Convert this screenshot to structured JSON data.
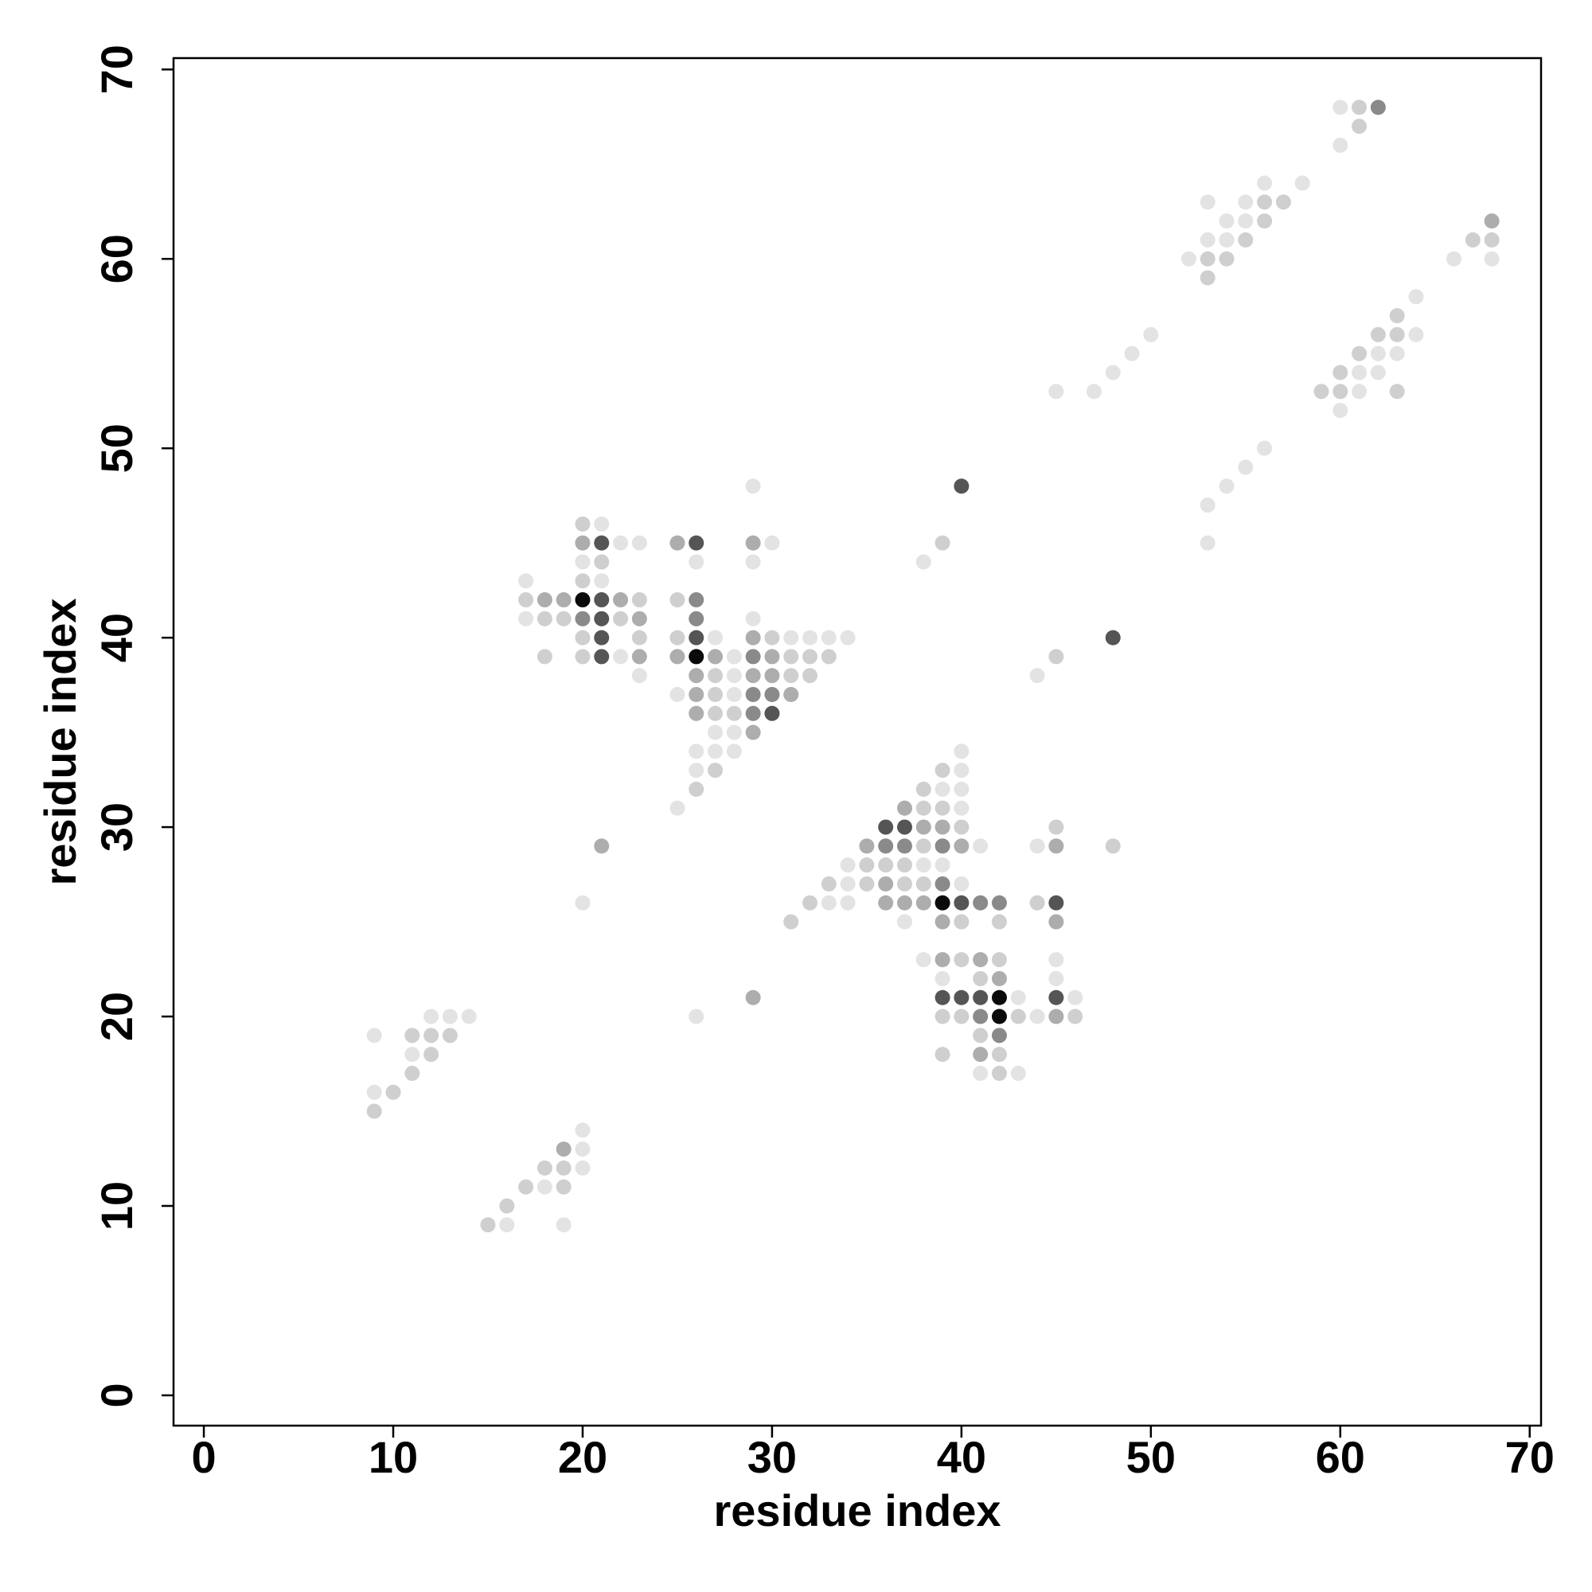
{
  "chart_data": {
    "type": "scatter",
    "xlabel": "residue index",
    "ylabel": "residue index",
    "xlim": [
      -1.6,
      70.6
    ],
    "ylim": [
      -1.6,
      70.6
    ],
    "xticks": [
      0,
      10,
      20,
      30,
      40,
      50,
      60,
      70
    ],
    "yticks": [
      0,
      10,
      20,
      30,
      40,
      50,
      60,
      70
    ],
    "series": [
      {
        "color": "#e3e3e3",
        "x": [
          60,
          60,
          56,
          58,
          53,
          55,
          54,
          55,
          53,
          54,
          52,
          66,
          68,
          64,
          50,
          64,
          49,
          62,
          63,
          48,
          61,
          62,
          45,
          47,
          61,
          60,
          56,
          55,
          29,
          54,
          53,
          21,
          22,
          23,
          30,
          53,
          20,
          26,
          29,
          38,
          17,
          21,
          17,
          29,
          27,
          31,
          32,
          33,
          34,
          22,
          28,
          23,
          28,
          44,
          25,
          28,
          27,
          28,
          26,
          27,
          28,
          40,
          26,
          40,
          39,
          40,
          25,
          40,
          41,
          44,
          34,
          38,
          39,
          34,
          40,
          20,
          33,
          34,
          37,
          38,
          45,
          39,
          45,
          43,
          46,
          26,
          44,
          12,
          13,
          14,
          9,
          11,
          41,
          43,
          9,
          20,
          20,
          20,
          18,
          16,
          19
        ],
        "y": [
          68,
          66,
          64,
          64,
          63,
          63,
          62,
          62,
          61,
          61,
          60,
          60,
          60,
          58,
          56,
          56,
          55,
          55,
          55,
          54,
          54,
          54,
          53,
          53,
          53,
          52,
          50,
          49,
          48,
          48,
          47,
          46,
          45,
          45,
          45,
          45,
          44,
          44,
          44,
          44,
          43,
          43,
          41,
          41,
          40,
          40,
          40,
          40,
          40,
          39,
          39,
          38,
          38,
          38,
          37,
          37,
          35,
          35,
          34,
          34,
          34,
          34,
          33,
          33,
          32,
          32,
          31,
          31,
          29,
          29,
          28,
          28,
          28,
          27,
          27,
          26,
          26,
          26,
          25,
          23,
          23,
          22,
          22,
          21,
          21,
          20,
          20,
          20,
          20,
          20,
          19,
          18,
          17,
          17,
          16,
          14,
          13,
          12,
          11,
          9,
          9
        ]
      },
      {
        "color": "#cfcfcf",
        "x": [
          61,
          61,
          56,
          57,
          56,
          55,
          67,
          68,
          53,
          54,
          53,
          63,
          62,
          63,
          61,
          60,
          59,
          60,
          63,
          20,
          39,
          21,
          20,
          17,
          23,
          25,
          18,
          19,
          22,
          20,
          23,
          25,
          30,
          18,
          20,
          31,
          32,
          33,
          45,
          27,
          31,
          32,
          27,
          27,
          28,
          27,
          39,
          26,
          38,
          38,
          39,
          40,
          45,
          38,
          48,
          35,
          36,
          37,
          33,
          35,
          37,
          38,
          32,
          44,
          31,
          40,
          42,
          40,
          42,
          41,
          39,
          40,
          43,
          46,
          11,
          12,
          13,
          41,
          12,
          39,
          42,
          11,
          42,
          10,
          9,
          18,
          19,
          17,
          19,
          16,
          15
        ],
        "y": [
          68,
          67,
          63,
          63,
          62,
          61,
          61,
          61,
          60,
          60,
          59,
          57,
          56,
          56,
          55,
          54,
          53,
          53,
          53,
          46,
          45,
          44,
          43,
          42,
          42,
          42,
          41,
          41,
          41,
          40,
          40,
          40,
          40,
          39,
          39,
          39,
          39,
          39,
          39,
          38,
          38,
          38,
          37,
          36,
          36,
          33,
          33,
          32,
          32,
          31,
          31,
          30,
          30,
          29,
          29,
          28,
          28,
          28,
          27,
          27,
          27,
          27,
          26,
          26,
          25,
          25,
          25,
          23,
          23,
          22,
          20,
          20,
          20,
          20,
          19,
          19,
          19,
          19,
          18,
          18,
          18,
          17,
          17,
          16,
          15,
          12,
          12,
          11,
          11,
          10,
          9
        ]
      },
      {
        "color": "#adadad",
        "x": [
          68,
          20,
          25,
          29,
          18,
          19,
          22,
          23,
          29,
          23,
          25,
          27,
          30,
          26,
          29,
          30,
          26,
          31,
          26,
          29,
          37,
          38,
          39,
          21,
          35,
          40,
          45,
          36,
          36,
          37,
          38,
          39,
          45,
          39,
          41,
          42,
          29,
          45,
          41,
          19
        ],
        "y": [
          62,
          45,
          45,
          45,
          42,
          42,
          42,
          41,
          40,
          39,
          39,
          39,
          39,
          38,
          38,
          38,
          37,
          37,
          36,
          35,
          31,
          30,
          30,
          29,
          29,
          29,
          29,
          27,
          26,
          26,
          26,
          25,
          25,
          23,
          23,
          22,
          21,
          20,
          18,
          13
        ]
      },
      {
        "color": "#8a8a8a",
        "x": [
          62,
          26,
          20,
          26,
          29,
          29,
          30,
          29,
          36,
          37,
          39,
          39,
          41,
          42,
          41,
          42
        ],
        "y": [
          68,
          42,
          41,
          41,
          39,
          37,
          37,
          36,
          29,
          29,
          29,
          27,
          26,
          26,
          20,
          19
        ]
      },
      {
        "color": "#555555",
        "x": [
          40,
          21,
          26,
          21,
          21,
          21,
          26,
          48,
          21,
          30,
          36,
          37,
          40,
          45,
          39,
          40,
          41,
          45
        ],
        "y": [
          48,
          45,
          45,
          42,
          41,
          40,
          40,
          40,
          39,
          36,
          30,
          30,
          26,
          26,
          21,
          21,
          21,
          21
        ]
      },
      {
        "color": "#0a0a0a",
        "x": [
          20,
          26,
          39,
          42,
          42
        ],
        "y": [
          42,
          39,
          26,
          21,
          20
        ]
      }
    ]
  }
}
